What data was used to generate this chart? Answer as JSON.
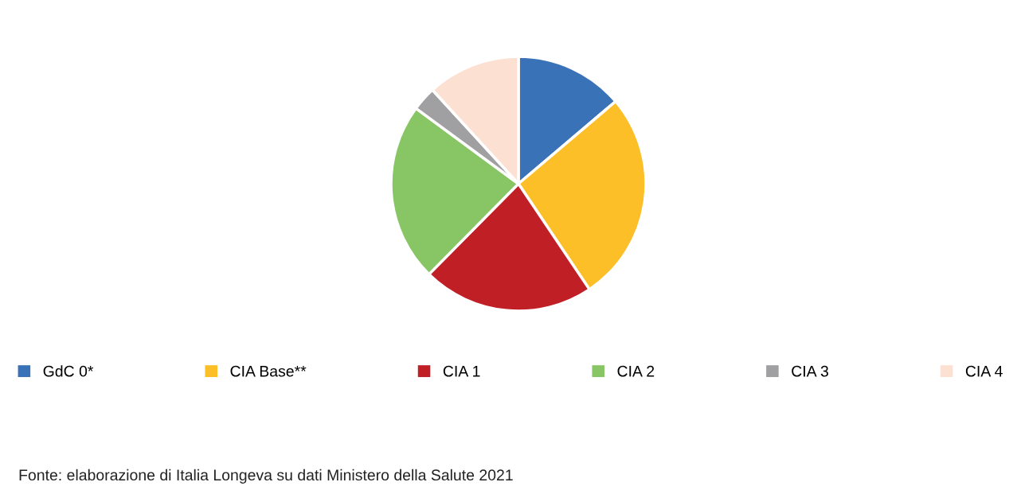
{
  "chart_data": {
    "type": "pie",
    "categories": [
      "GdC 0*",
      "CIA Base**",
      "CIA 1",
      "CIA 2",
      "CIA 3",
      "CIA 4"
    ],
    "values": [
      13.8,
      26.8,
      21.8,
      22.7,
      3.1,
      11.8
    ],
    "colors": [
      "#3a72b8",
      "#fdbf28",
      "#c01f26",
      "#88c665",
      "#a0a0a2",
      "#fce0d1"
    ],
    "legend": "bottom",
    "annotations": [
      "Fonte: elaborazione di Italia Longeva su dati Ministero della Salute 2021"
    ]
  }
}
